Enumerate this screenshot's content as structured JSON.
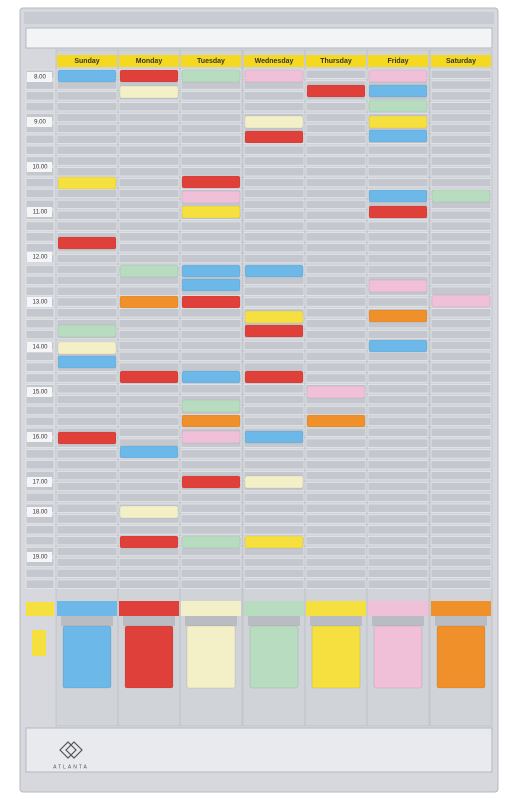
{
  "days": [
    "Sunday",
    "Monday",
    "Tuesday",
    "Wednesday",
    "Thursday",
    "Friday",
    "Saturday"
  ],
  "times": [
    "8.00",
    "9.00",
    "10.00",
    "11.00",
    "12.00",
    "13.00",
    "14.00",
    "15.00",
    "16.00",
    "17.00",
    "18.00",
    "19.00"
  ],
  "brand": "ATLANTA"
}
